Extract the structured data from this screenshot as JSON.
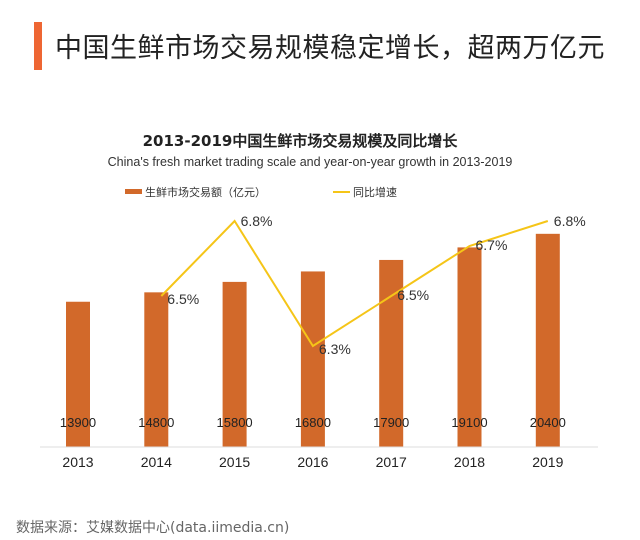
{
  "header": {
    "title": "中国生鲜市场交易规模稳定增长，超两万亿元",
    "accent_color": "#ee6633"
  },
  "chart_data": {
    "type": "bar+line",
    "title": "2013-2019中国生鲜市场交易规模及同比增长",
    "subtitle": "China's fresh market trading scale and year-on-year growth in 2013-2019",
    "categories": [
      "2013",
      "2014",
      "2015",
      "2016",
      "2017",
      "2018",
      "2019"
    ],
    "series": [
      {
        "name": "生鲜市场交易额（亿元）",
        "type": "bar",
        "color": "#d2692a",
        "values": [
          13900,
          14800,
          15800,
          16800,
          17900,
          19100,
          20400
        ],
        "labels": [
          "13900",
          "14800",
          "15800",
          "16800",
          "17900",
          "19100",
          "20400"
        ]
      },
      {
        "name": "同比增速",
        "type": "line",
        "color": "#f5c518",
        "values": [
          null,
          6.5,
          6.8,
          6.3,
          6.5,
          6.7,
          6.8
        ],
        "labels": [
          "",
          "6.5%",
          "6.8%",
          "6.3%",
          "6.5%",
          "6.7%",
          "6.8%"
        ]
      }
    ],
    "legend": "top-center",
    "grid": false
  },
  "footer": {
    "source": "数据来源：艾媒数据中心(data.iimedia.cn)"
  }
}
